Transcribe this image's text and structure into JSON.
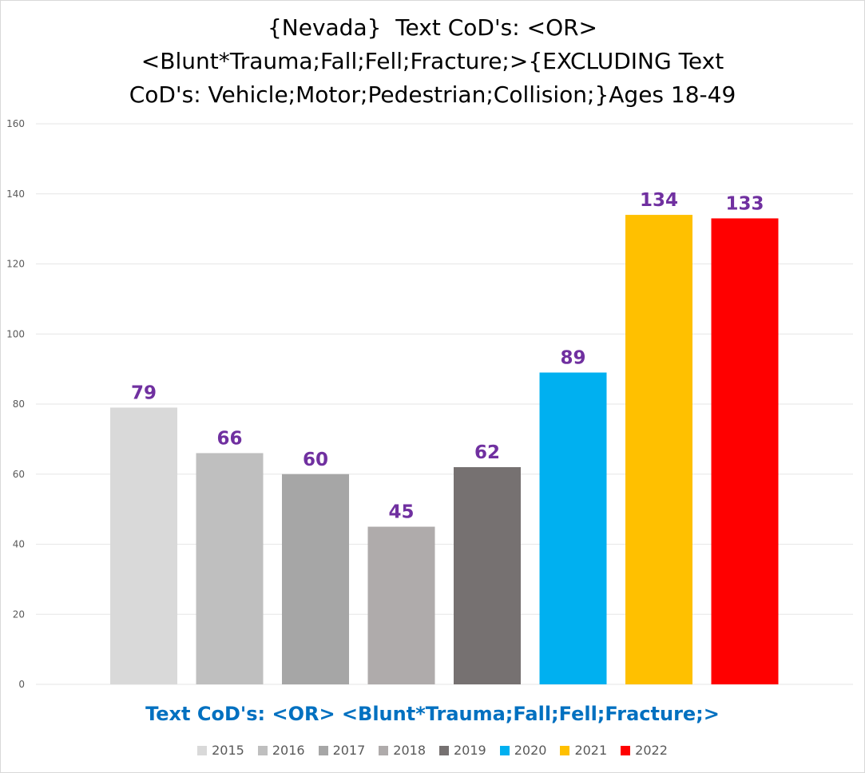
{
  "chart_data": {
    "type": "bar",
    "title_lines": [
      "{Nevada}  Text CoD's: <OR>",
      "<Blunt*Trauma;Fall;Fell;Fracture;>{EXCLUDING Text",
      "CoD's: Vehicle;Motor;Pedestrian;Collision;}Ages 18-49"
    ],
    "xlabel": "Text CoD's: <OR> <Blunt*Trauma;Fall;Fell;Fracture;>",
    "ylabel": "",
    "ylim": [
      0,
      160
    ],
    "yticks": [
      "0",
      "20",
      "40",
      "60",
      "80",
      "100",
      "120",
      "140",
      "160"
    ],
    "grid": true,
    "legend_position": "bottom",
    "series": [
      {
        "name": "2015",
        "value": 79,
        "color": "#d9d9d9"
      },
      {
        "name": "2016",
        "value": 66,
        "color": "#bfbfbf"
      },
      {
        "name": "2017",
        "value": 60,
        "color": "#a6a6a6"
      },
      {
        "name": "2018",
        "value": 45,
        "color": "#afabab"
      },
      {
        "name": "2019",
        "value": 62,
        "color": "#767171"
      },
      {
        "name": "2020",
        "value": 89,
        "color": "#00b0f0"
      },
      {
        "name": "2021",
        "value": 134,
        "color": "#ffc000"
      },
      {
        "name": "2022",
        "value": 133,
        "color": "#ff0000"
      }
    ],
    "data_label_color": "#7030a0"
  }
}
